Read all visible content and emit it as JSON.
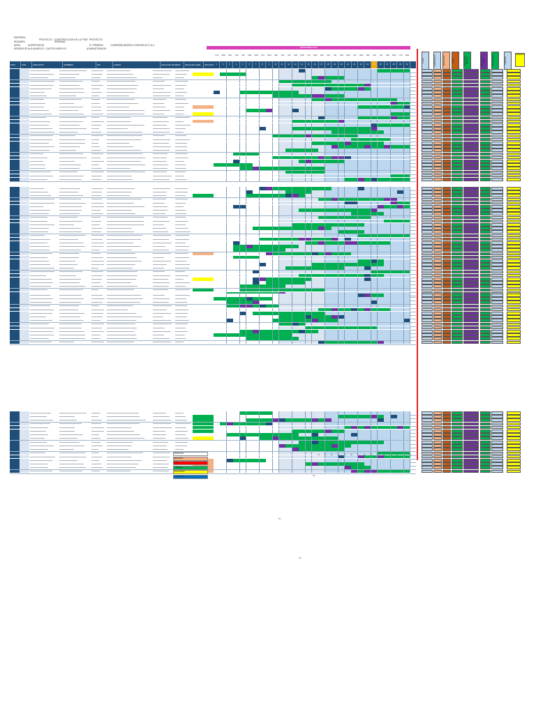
{
  "header": {
    "line1_left": "EMPRESA",
    "line1_proyecto": "PROYECTO : CONSTRUCCION DE LA PTAR",
    "line1_proyecto_label": "PROYECTO",
    "line2_regimen": "REGIMEN",
    "line2_value": "SEMANAL",
    "line3_area": "AREA",
    "line3_area_value": "SUPERVISION",
    "line3_regimen_label": "R. PRIMERA",
    "line3_company": "COMPAÑÍA MINERA CONSORCIO S.A.C.",
    "line4_residente": "RESIDENTE",
    "line4_residente_value": "ALEJANDRO E. CASTRO ARROYO",
    "line4_admin": "ADMINISTRADOR"
  },
  "month_label": "SETIEMBRE 2019",
  "columns": {
    "item": "ITEM",
    "cod": "COD.",
    "apellidos": "APELLIDOS",
    "nombres": "NOMBRES",
    "dni": "DNI",
    "cargo": "CARGO",
    "fecha_ingreso": "FECHA DE INGRESO",
    "fecha_cese": "FECHA DE CESE",
    "situacion": "SITUACION"
  },
  "day_names": [
    "LUN",
    "MAR",
    "MIE",
    "JUE",
    "VIE",
    "SAB",
    "DOM",
    "LUN",
    "MAR",
    "MIE",
    "JUE",
    "VIE",
    "SAB",
    "DOM",
    "LUN",
    "MAR",
    "MIE",
    "JUE",
    "VIE",
    "SAB",
    "DOM",
    "LUN",
    "MAR",
    "MIE",
    "JUE",
    "VIE",
    "SAB",
    "DOM",
    "LUN",
    "MAR"
  ],
  "days": [
    "1",
    "2",
    "3",
    "4",
    "5",
    "6",
    "7",
    "8",
    "9",
    "10",
    "11",
    "12",
    "13",
    "14",
    "15",
    "16",
    "17",
    "18",
    "19",
    "20",
    "21",
    "22",
    "23",
    "24",
    "25",
    "26",
    "27",
    "28",
    "29",
    "30"
  ],
  "summary_headers": [
    {
      "label": "TOTAL",
      "color": "#bdd7ee"
    },
    {
      "label": "TRABAJADOS",
      "color": "#bdd7ee"
    },
    {
      "label": "DESCANSO",
      "color": "#f4b183"
    },
    {
      "label": "FALTA",
      "color": "#c55a11"
    },
    {
      "label": "DESCANSO MEDICO",
      "color": "#00b050"
    },
    {
      "label": "PERMISO SIN GOCE",
      "color": "#7030a0"
    },
    {
      "label": "VACACIONES",
      "color": "#00b050"
    },
    {
      "label": "SUBSIDIO",
      "color": "#bdd7ee"
    },
    {
      "label": "OBSERVACIONES",
      "color": "#ffff00"
    }
  ],
  "legend": [
    {
      "label": "TRABAJADO",
      "color": "#ffffff"
    },
    {
      "label": "DESCANSO",
      "color": "#f4b183"
    },
    {
      "label": "FALTA",
      "color": "#ff0000"
    },
    {
      "label": "D. MEDICO",
      "color": "#00b050"
    },
    {
      "label": "VACACIONES",
      "color": "#ffff00"
    },
    {
      "label": "P. SIN GOCE",
      "color": "#0070c0"
    }
  ],
  "bottom_numbers": [
    "31",
    "32",
    "33",
    "34",
    "35",
    "36",
    "37",
    "38",
    "39",
    "40",
    "41",
    "42",
    "43",
    "44",
    "45"
  ],
  "footnotes": [
    "40",
    "50",
    "60"
  ]
}
